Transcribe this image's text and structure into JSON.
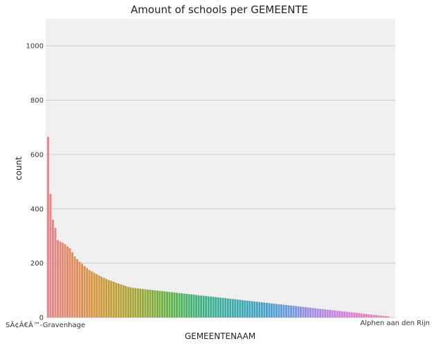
{
  "chart_data": {
    "type": "bar",
    "title": "Amount of schools per GEMEENTE",
    "xlabel": "GEMEENTENAAM",
    "ylabel": "count",
    "ylim": [
      0,
      1100
    ],
    "yticks": [
      0,
      200,
      400,
      600,
      800,
      1000
    ],
    "grid": true,
    "legend": "none",
    "first_category_label": "SÃ¢Â€Â™-Gravenhage",
    "last_category_label": "Alphen aan den Rijn",
    "values": [
      665,
      455,
      360,
      330,
      285,
      280,
      275,
      270,
      262,
      255,
      240,
      225,
      215,
      205,
      198,
      190,
      182,
      175,
      170,
      165,
      160,
      155,
      150,
      146,
      142,
      138,
      135,
      132,
      128,
      125,
      122,
      119,
      116,
      113,
      111,
      109,
      108,
      107,
      106,
      105,
      104,
      103,
      102,
      101,
      100,
      99,
      98,
      97,
      96,
      95,
      94,
      93,
      92,
      91,
      90,
      89,
      88,
      87,
      86,
      85,
      84,
      83,
      82,
      81,
      80,
      79,
      78,
      77,
      76,
      75,
      74,
      73,
      72,
      71,
      70,
      69,
      68,
      67,
      66,
      65,
      64,
      63,
      62,
      61,
      60,
      59,
      58,
      57,
      56,
      55,
      54,
      53,
      52,
      51,
      50,
      49,
      48,
      47,
      46,
      45,
      44,
      43,
      42,
      41,
      40,
      39,
      38,
      37,
      36,
      35,
      34,
      33,
      32,
      31,
      30,
      29,
      28,
      27,
      26,
      25,
      24,
      23,
      22,
      21,
      20,
      19,
      18,
      17,
      16,
      15,
      14,
      13,
      12,
      11,
      10,
      9,
      8,
      7,
      6,
      5,
      4
    ]
  }
}
